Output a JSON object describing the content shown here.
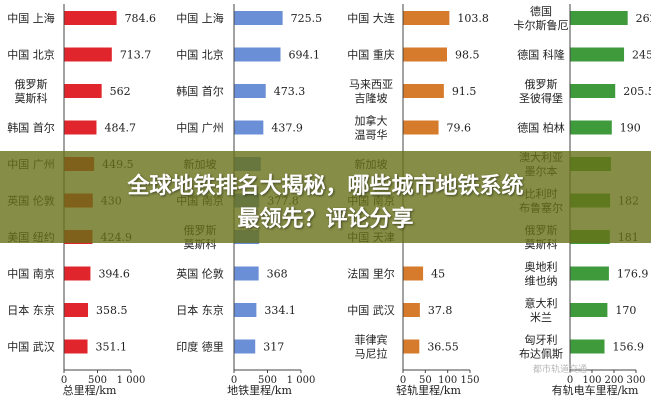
{
  "charts": [
    {
      "type": "bar",
      "xlabel": "总里程/km",
      "xlim": [
        0,
        1000
      ],
      "xticks": [
        "0",
        "500",
        "1 000"
      ],
      "color": "#e0252c",
      "categories": [
        [
          "中国 上海"
        ],
        [
          "中国 北京"
        ],
        [
          "俄罗斯",
          "莫斯科"
        ],
        [
          "韩国 首尔"
        ],
        [
          "中国 广州"
        ],
        [
          "英国 伦敦"
        ],
        [
          "美国 纽约"
        ],
        [
          "中国 南京"
        ],
        [
          "日本 东京"
        ],
        [
          "中国 武汉"
        ]
      ],
      "values": [
        784.6,
        713.7,
        562,
        484.7,
        449.5,
        430,
        424.9,
        394.6,
        358.5,
        351.1
      ],
      "labels": [
        "784.6",
        "713.7",
        "562",
        "484.7",
        "449.5",
        "430",
        "424.9",
        "394.6",
        "358.5",
        "351.1"
      ]
    },
    {
      "type": "bar",
      "xlabel": "地铁里程/km",
      "xlim": [
        0,
        1000
      ],
      "xticks": [
        "0",
        "500",
        "1 000"
      ],
      "color": "#6b8fd6",
      "categories": [
        [
          "中国 上海"
        ],
        [
          "中国 北京"
        ],
        [
          "韩国 首尔"
        ],
        [
          "中国 广州"
        ],
        [
          "新加坡"
        ],
        [
          "中国 南京"
        ],
        [
          "俄罗斯",
          "莫斯科"
        ],
        [
          "英国 伦敦"
        ],
        [
          "日本 东京"
        ],
        [
          "印度 德里"
        ]
      ],
      "values": [
        725.5,
        694.1,
        473.3,
        437.9,
        400,
        377.8,
        376.1,
        368,
        334.1,
        317
      ],
      "labels": [
        "725.5",
        "694.1",
        "473.3",
        "437.9",
        "",
        "377.8",
        "",
        "368",
        "334.1",
        "317"
      ]
    },
    {
      "type": "bar",
      "xlabel": "轻轨里程/km",
      "xlim": [
        0,
        150
      ],
      "xticks": [
        "0",
        "50",
        "100",
        "150"
      ],
      "color": "#d67b2c",
      "categories": [
        [
          "中国 大连"
        ],
        [
          "中国 重庆"
        ],
        [
          "马来西亚",
          "吉隆坡"
        ],
        [
          "加拿大",
          "温哥华"
        ],
        [
          "新加坡"
        ],
        [
          "中国 南京"
        ],
        [
          "中国 天津"
        ],
        [
          "法国 里尔"
        ],
        [
          "中国 武汉"
        ],
        [
          "菲律宾",
          "马尼拉"
        ]
      ],
      "values": [
        103.8,
        98.5,
        91.5,
        79.6,
        0,
        0,
        0,
        45,
        37.8,
        36.55
      ],
      "labels": [
        "103.8",
        "98.5",
        "91.5",
        "79.6",
        "",
        "",
        "",
        "45",
        "37.8",
        "36.55"
      ]
    },
    {
      "type": "bar",
      "xlabel": "有轨电车里程/km",
      "xlim": [
        0,
        300
      ],
      "xticks": [
        "0",
        "100",
        "200",
        "300"
      ],
      "color": "#3f9a3c",
      "categories": [
        [
          "德国",
          "卡尔斯鲁厄"
        ],
        [
          "德国 科隆"
        ],
        [
          "俄罗斯",
          "圣彼得堡"
        ],
        [
          "德国 柏林"
        ],
        [
          "澳大利亚",
          "墨尔本"
        ],
        [
          "比利时",
          "布鲁塞尔"
        ],
        [
          "俄罗斯",
          "莫斯科"
        ],
        [
          "奥地利",
          "维也纳"
        ],
        [
          "意大利",
          "米兰"
        ],
        [
          "匈牙利",
          "布达佩斯"
        ]
      ],
      "values": [
        262.2,
        245.7,
        205.5,
        190,
        186,
        182,
        181,
        176.9,
        170,
        156.9
      ],
      "labels": [
        "262.2",
        "245.7",
        "205.5",
        "190",
        "",
        "182",
        "181",
        "176.9",
        "170",
        "156.9"
      ]
    }
  ],
  "banner": {
    "line1": "全球地铁排名大揭秘，哪些城市地铁系统",
    "line2": "最领先？评论分享"
  },
  "watermark": "都市轨道交通"
}
